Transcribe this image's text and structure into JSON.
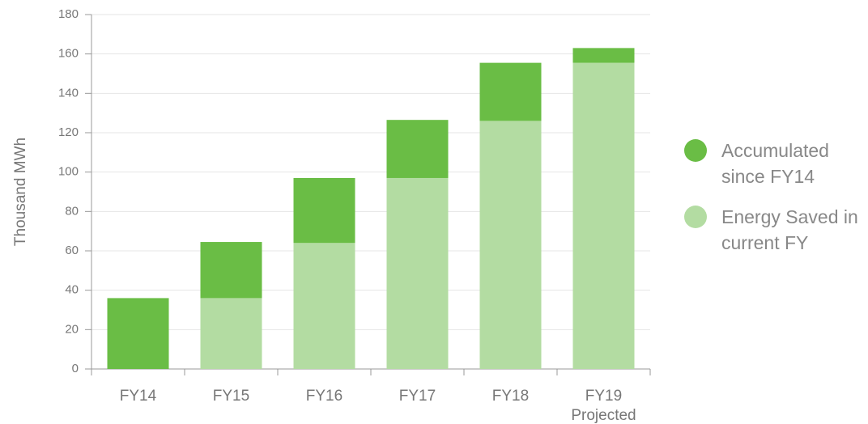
{
  "chart_data": {
    "type": "stacked_bar",
    "y_label": "Thousand MWh",
    "categories": [
      "FY14",
      "FY15",
      "FY16",
      "FY17",
      "FY18",
      "FY19\nProjected"
    ],
    "series": [
      {
        "name": "Energy Saved in current FY",
        "color": "#b3dca2",
        "values": [
          0,
          36,
          64,
          97,
          126,
          155.5
        ]
      },
      {
        "name": "Accumulated since FY14",
        "color": "#6abd45",
        "values": [
          36,
          28.5,
          33,
          29.5,
          29.5,
          7.5
        ]
      }
    ],
    "legend_order": [
      1,
      0
    ],
    "ylim": [
      0,
      180
    ],
    "yticks": [
      0,
      20,
      40,
      60,
      80,
      100,
      120,
      140,
      160,
      180
    ],
    "grid": true,
    "legend": "right"
  }
}
